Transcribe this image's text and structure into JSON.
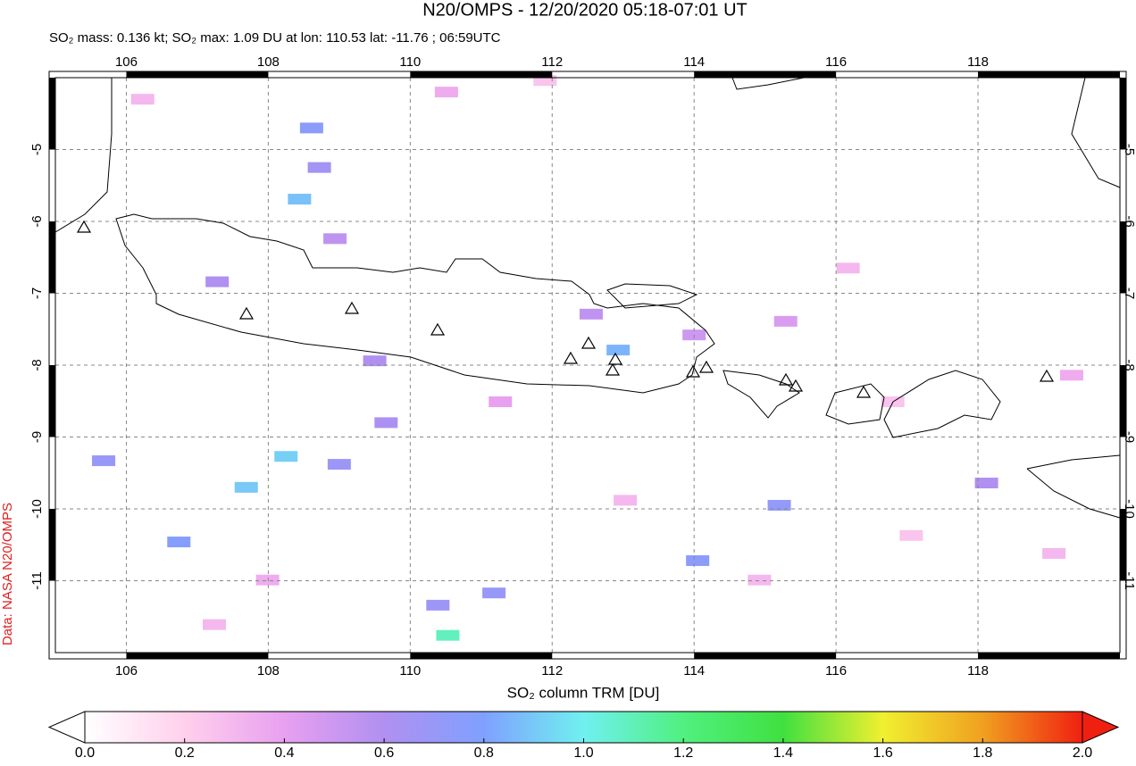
{
  "chart_data": {
    "type": "map",
    "title": "N20/OMPS - 12/20/2020 05:18-07:01 UT",
    "subtitle": "SO₂ mass: 0.136 kt; SO₂ max: 1.09 DU at lon: 110.53 lat: -11.76 ; 06:59UTC",
    "credit": "Data: NASA N20/OMPS",
    "colorbar_label": "SO₂ column TRM [DU]",
    "xlim": [
      105,
      120
    ],
    "ylim": [
      -12,
      -4
    ],
    "xticks": [
      106,
      108,
      110,
      112,
      114,
      116,
      118
    ],
    "yticks": [
      -5,
      -6,
      -7,
      -8,
      -9,
      -10,
      -11
    ],
    "grid": true,
    "clim": [
      0,
      2
    ],
    "colormap": [
      "#ffffff",
      "#ffd0ec",
      "#e8a0f0",
      "#b090f0",
      "#80a0ff",
      "#70f0f0",
      "#50f080",
      "#40e040",
      "#f0f030",
      "#f0a020",
      "#f02010"
    ],
    "cticks": [
      {
        "value": 0,
        "label": "0.0"
      },
      {
        "value": 0.2,
        "label": "0.2"
      },
      {
        "value": 0.4,
        "label": "0.4"
      },
      {
        "value": 0.6,
        "label": "0.6"
      },
      {
        "value": 0.8,
        "label": "0.8"
      },
      {
        "value": 1,
        "label": "1.0"
      },
      {
        "value": 1.2,
        "label": "1.2"
      },
      {
        "value": 1.4,
        "label": "1.4"
      },
      {
        "value": 1.6,
        "label": "1.6"
      },
      {
        "value": 1.8,
        "label": "1.8"
      },
      {
        "value": 2,
        "label": "2.0"
      }
    ],
    "pixels": {
      "lon": [
        110.53,
        107.69,
        108.25,
        108.44,
        108.61,
        108.72,
        112.93,
        111.18,
        114.05,
        115.2,
        106.74,
        105.68,
        110.39,
        109.0,
        109.66,
        109.5,
        107.28,
        108.94,
        118.12,
        112.55,
        114.0,
        106.23,
        110.51,
        116.17,
        116.8,
        113.03,
        114.92,
        119.32,
        107.99,
        111.9,
        119.07,
        107.24,
        111.27,
        115.29,
        117.06
      ],
      "lat": [
        -11.76,
        -9.7,
        -9.27,
        -5.69,
        -4.7,
        -5.25,
        -7.79,
        -11.17,
        -10.72,
        -9.95,
        -10.46,
        -9.33,
        -11.34,
        -9.38,
        -8.8,
        -7.94,
        -6.84,
        -6.24,
        -9.64,
        -7.29,
        -7.58,
        -4.3,
        -4.2,
        -6.65,
        -8.51,
        -9.88,
        -10.99,
        -8.14,
        -10.99,
        -4.04,
        -10.62,
        -11.61,
        -8.51,
        -7.39,
        -10.37
      ],
      "values": [
        1.09,
        0.9,
        0.92,
        0.88,
        0.75,
        0.65,
        0.85,
        0.7,
        0.75,
        0.72,
        0.78,
        0.7,
        0.68,
        0.68,
        0.62,
        0.6,
        0.6,
        0.55,
        0.6,
        0.55,
        0.5,
        0.3,
        0.35,
        0.3,
        0.25,
        0.3,
        0.3,
        0.35,
        0.35,
        0.25,
        0.3,
        0.3,
        0.4,
        0.45,
        0.25
      ]
    }
  }
}
